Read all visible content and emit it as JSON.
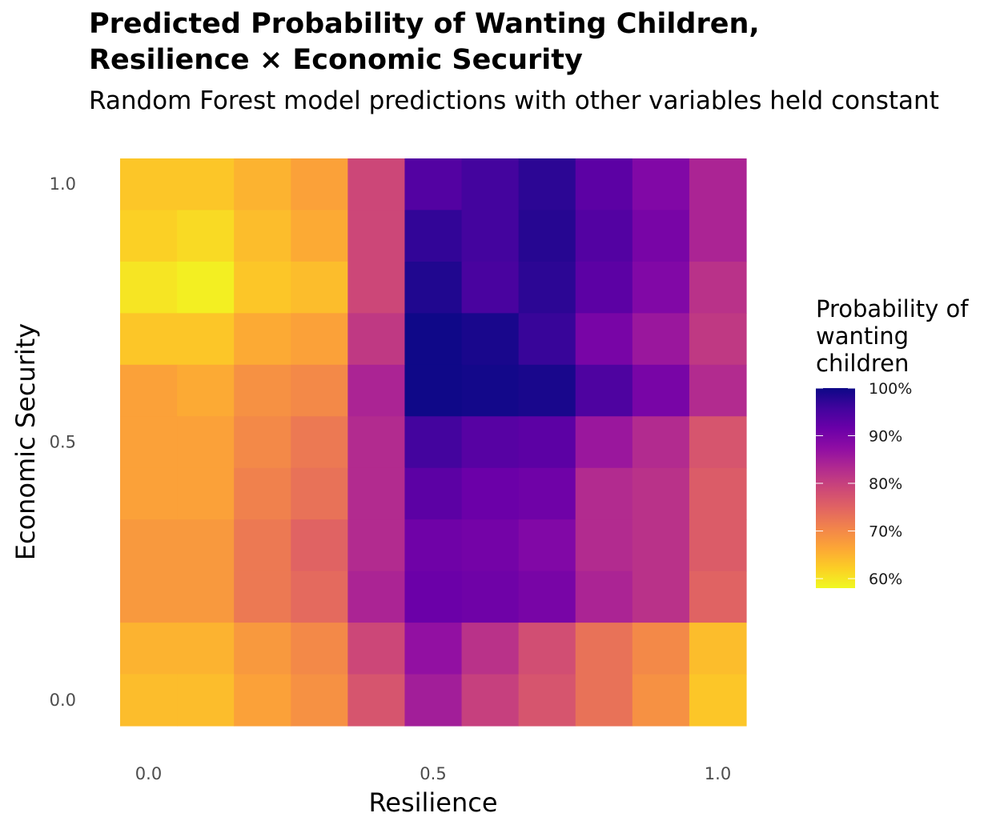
{
  "title_lines": [
    "Predicted Probability of Wanting Children,",
    "Resilience × Economic Security"
  ],
  "subtitle": "Random Forest model predictions with other variables held constant",
  "chart_data": {
    "type": "heatmap",
    "x": [
      0.0,
      0.1,
      0.2,
      0.3,
      0.4,
      0.5,
      0.6,
      0.7,
      0.8,
      0.9,
      1.0
    ],
    "y": [
      1.0,
      0.9,
      0.8,
      0.7,
      0.6,
      0.5,
      0.4,
      0.3,
      0.2,
      0.1,
      0.0
    ],
    "z": [
      [
        0.63,
        0.63,
        0.65,
        0.67,
        0.79,
        0.94,
        0.955,
        0.975,
        0.93,
        0.89,
        0.84
      ],
      [
        0.62,
        0.61,
        0.64,
        0.66,
        0.79,
        0.97,
        0.955,
        0.98,
        0.94,
        0.9,
        0.84
      ],
      [
        0.6,
        0.59,
        0.63,
        0.64,
        0.79,
        0.985,
        0.95,
        0.975,
        0.93,
        0.89,
        0.82
      ],
      [
        0.63,
        0.63,
        0.66,
        0.67,
        0.81,
        0.998,
        0.99,
        0.965,
        0.9,
        0.86,
        0.81
      ],
      [
        0.67,
        0.66,
        0.69,
        0.7,
        0.84,
        0.998,
        0.995,
        0.99,
        0.945,
        0.9,
        0.83
      ],
      [
        0.67,
        0.67,
        0.7,
        0.72,
        0.83,
        0.955,
        0.935,
        0.93,
        0.86,
        0.83,
        0.77
      ],
      [
        0.67,
        0.67,
        0.71,
        0.73,
        0.83,
        0.93,
        0.915,
        0.91,
        0.83,
        0.82,
        0.76
      ],
      [
        0.68,
        0.68,
        0.72,
        0.75,
        0.83,
        0.91,
        0.905,
        0.89,
        0.83,
        0.82,
        0.76
      ],
      [
        0.68,
        0.68,
        0.72,
        0.74,
        0.84,
        0.915,
        0.91,
        0.9,
        0.84,
        0.82,
        0.75
      ],
      [
        0.65,
        0.65,
        0.68,
        0.7,
        0.79,
        0.87,
        0.82,
        0.78,
        0.73,
        0.7,
        0.64
      ],
      [
        0.64,
        0.64,
        0.67,
        0.69,
        0.77,
        0.85,
        0.8,
        0.77,
        0.73,
        0.69,
        0.63
      ]
    ],
    "x_ticks": [
      0.0,
      0.5,
      1.0
    ],
    "x_tick_labels": [
      "0.0",
      "0.5",
      "1.0"
    ],
    "y_ticks": [
      0.0,
      0.5,
      1.0
    ],
    "y_tick_labels": [
      "0.0",
      "0.5",
      "1.0"
    ],
    "xlabel": "Resilience",
    "ylabel": "Economic Security",
    "xlim": [
      -0.05,
      1.05
    ],
    "ylim": [
      -0.05,
      1.05
    ],
    "colorscale": "plasma (reversed)",
    "color_min": 0.58,
    "color_max": 1.0,
    "legend_title_lines": [
      "Probability of",
      "wanting",
      "children"
    ],
    "legend_ticks": [
      1.0,
      0.9,
      0.8,
      0.7,
      0.6
    ],
    "legend_tick_labels": [
      "100%",
      "90%",
      "80%",
      "70%",
      "60%"
    ],
    "legend_position": "right",
    "grid": false
  }
}
